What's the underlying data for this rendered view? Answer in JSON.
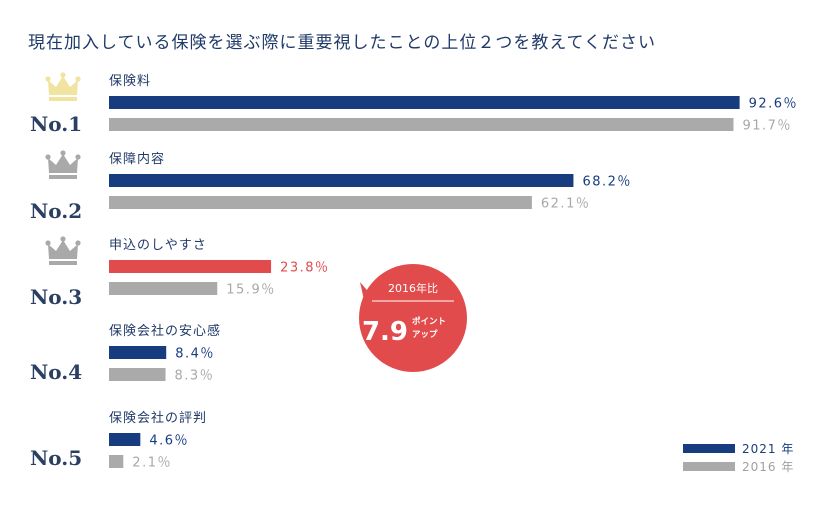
{
  "colors": {
    "series_2021": "#173c80",
    "series_2016": "#aaaaaa",
    "highlight": "#e24b4b",
    "text": "#1f3a68",
    "crown_gold": "#f1e3a0",
    "crown_gray": "#a9a9a9"
  },
  "chart_data": {
    "type": "bar",
    "orientation": "horizontal",
    "title": "現在加入している保険を選ぶ際に重要視したことの上位２つを教えてください",
    "ranks": [
      "No.1",
      "No.2",
      "No.3",
      "No.4",
      "No.5"
    ],
    "categories": [
      "保険料",
      "保障内容",
      "申込のしやすさ",
      "保険会社の安心感",
      "保険会社の評判"
    ],
    "xlim": [
      0,
      100
    ],
    "series": [
      {
        "name": "2021 年",
        "values": [
          92.6,
          68.2,
          23.8,
          8.4,
          4.6
        ],
        "labels": [
          "92.6％",
          "68.2％",
          "23.8％",
          "8.4％",
          "4.6％"
        ]
      },
      {
        "name": "2016 年",
        "values": [
          91.7,
          62.1,
          15.9,
          8.3,
          2.1
        ],
        "labels": [
          "91.7％",
          "62.1％",
          "15.9％",
          "8.3％",
          "2.1％"
        ]
      }
    ],
    "highlight_category_index": 2,
    "legend_position": "bottom-right",
    "grid": false,
    "annotation": {
      "top": "2016年比",
      "value": "7.9",
      "unit_line1": "ポイント",
      "unit_line2": "アップ"
    }
  }
}
